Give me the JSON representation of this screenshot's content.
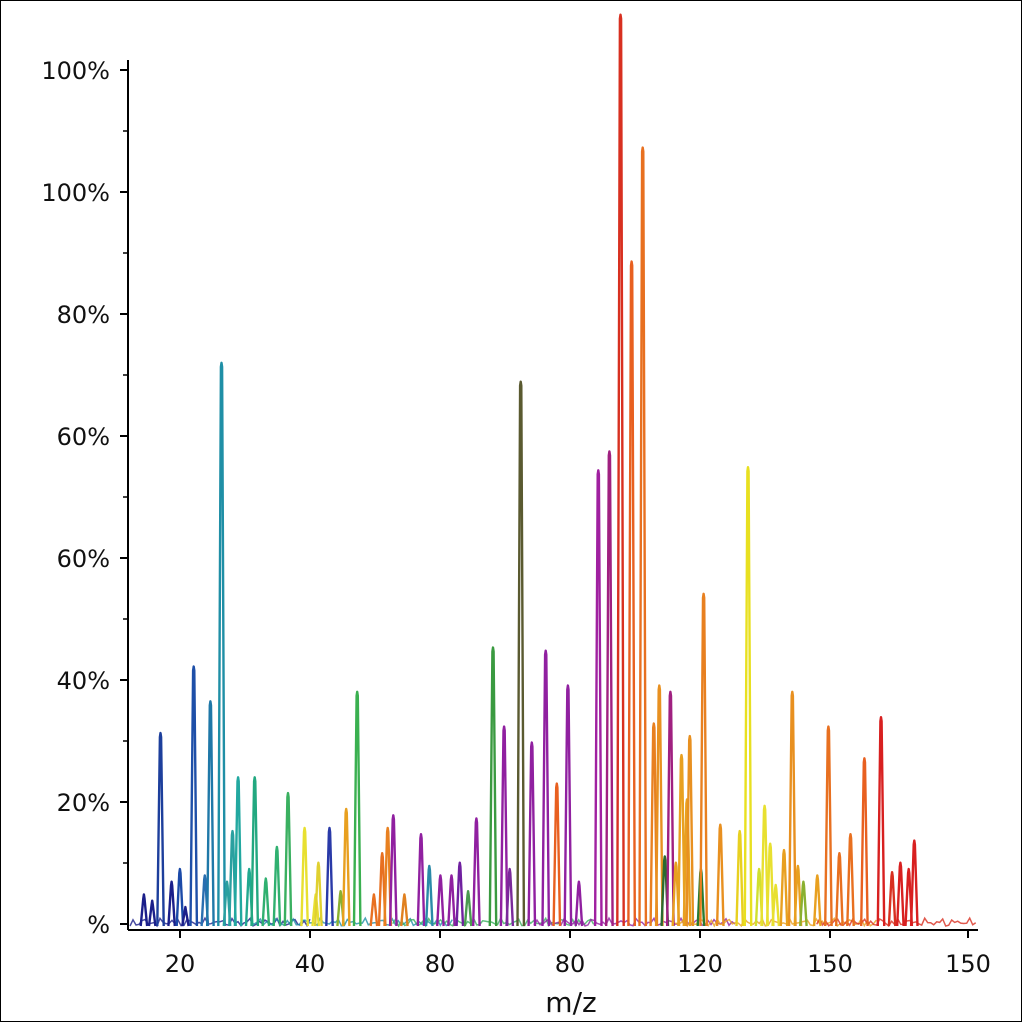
{
  "chart_data": {
    "type": "line",
    "xlabel": "m/z",
    "ylabel": "",
    "title": "",
    "x_ticks": [
      "20",
      "40",
      "80",
      "80",
      "120",
      "150",
      "150"
    ],
    "y_ticks": [
      "%",
      "20%",
      "40%",
      "60%",
      "60%",
      "80%",
      "100%",
      "100%"
    ],
    "xlim": [
      12,
      165
    ],
    "ylim": [
      0,
      140
    ],
    "grid": false,
    "legend": "none",
    "peaks": [
      {
        "x": 14.5,
        "y": 5,
        "color": "#1b1f8a"
      },
      {
        "x": 16,
        "y": 4,
        "color": "#1b1f8a"
      },
      {
        "x": 17.5,
        "y": 30.5,
        "color": "#1d3f9c"
      },
      {
        "x": 19.5,
        "y": 7,
        "color": "#1b1f8a"
      },
      {
        "x": 21,
        "y": 9,
        "color": "#1b4aa8"
      },
      {
        "x": 22,
        "y": 3,
        "color": "#1b1f8a"
      },
      {
        "x": 23.5,
        "y": 41,
        "color": "#1e4fa8"
      },
      {
        "x": 25.5,
        "y": 8,
        "color": "#2a6fb0"
      },
      {
        "x": 26.5,
        "y": 35.5,
        "color": "#1f78a8"
      },
      {
        "x": 28.5,
        "y": 89,
        "color": "#1f8fa6"
      },
      {
        "x": 29.5,
        "y": 7,
        "color": "#2aa0a0"
      },
      {
        "x": 30.5,
        "y": 15,
        "color": "#2aa0a0"
      },
      {
        "x": 31.5,
        "y": 23.5,
        "color": "#22a8a0"
      },
      {
        "x": 33.5,
        "y": 9,
        "color": "#22a890"
      },
      {
        "x": 34.5,
        "y": 23.5,
        "color": "#22a880"
      },
      {
        "x": 36.5,
        "y": 7.5,
        "color": "#30b070"
      },
      {
        "x": 38.5,
        "y": 12.5,
        "color": "#30b070"
      },
      {
        "x": 40.5,
        "y": 21,
        "color": "#3ab060"
      },
      {
        "x": 43.5,
        "y": 15.5,
        "color": "#e8e030"
      },
      {
        "x": 45.5,
        "y": 5,
        "color": "#e8e030"
      },
      {
        "x": 46,
        "y": 10,
        "color": "#e0d030"
      },
      {
        "x": 48,
        "y": 15.5,
        "color": "#2a3aa8"
      },
      {
        "x": 50,
        "y": 5.5,
        "color": "#8ab030"
      },
      {
        "x": 51,
        "y": 18.5,
        "color": "#e8a020"
      },
      {
        "x": 53,
        "y": 37,
        "color": "#3ab050"
      },
      {
        "x": 56,
        "y": 5,
        "color": "#e87020"
      },
      {
        "x": 57.5,
        "y": 11.5,
        "color": "#e87020"
      },
      {
        "x": 58.5,
        "y": 15.5,
        "color": "#e88020"
      },
      {
        "x": 59.5,
        "y": 17.5,
        "color": "#9020a0"
      },
      {
        "x": 61.5,
        "y": 5,
        "color": "#e08020"
      },
      {
        "x": 64.5,
        "y": 14.5,
        "color": "#9020a0"
      },
      {
        "x": 66,
        "y": 9.5,
        "color": "#2a8aa8"
      },
      {
        "x": 68,
        "y": 8,
        "color": "#9020a0"
      },
      {
        "x": 70,
        "y": 8,
        "color": "#9020a0"
      },
      {
        "x": 71.5,
        "y": 10,
        "color": "#7020a0"
      },
      {
        "x": 73,
        "y": 5.5,
        "color": "#4a9a50"
      },
      {
        "x": 74.5,
        "y": 17,
        "color": "#9020a0"
      },
      {
        "x": 77.5,
        "y": 44,
        "color": "#3a9a40"
      },
      {
        "x": 79.5,
        "y": 31.5,
        "color": "#9020a0"
      },
      {
        "x": 80.5,
        "y": 9,
        "color": "#7a2a9a"
      },
      {
        "x": 82.5,
        "y": 86,
        "color": "#5a5a30"
      },
      {
        "x": 84.5,
        "y": 29,
        "color": "#9020a0"
      },
      {
        "x": 87,
        "y": 43.5,
        "color": "#9020a0"
      },
      {
        "x": 89,
        "y": 22.5,
        "color": "#e86020"
      },
      {
        "x": 91,
        "y": 38,
        "color": "#9020a0"
      },
      {
        "x": 93,
        "y": 7,
        "color": "#9020a0"
      },
      {
        "x": 96.5,
        "y": 72,
        "color": "#a020a0"
      },
      {
        "x": 98.5,
        "y": 75,
        "color": "#a02080"
      },
      {
        "x": 100.5,
        "y": 144,
        "color": "#d83020"
      },
      {
        "x": 102.5,
        "y": 105,
        "color": "#e86020"
      },
      {
        "x": 104.5,
        "y": 123,
        "color": "#e87020"
      },
      {
        "x": 106.5,
        "y": 32,
        "color": "#e88020"
      },
      {
        "x": 107.5,
        "y": 38,
        "color": "#e89020"
      },
      {
        "x": 108.5,
        "y": 11,
        "color": "#2a6a30"
      },
      {
        "x": 109.5,
        "y": 37,
        "color": "#a02080"
      },
      {
        "x": 110.5,
        "y": 10,
        "color": "#e8a020"
      },
      {
        "x": 111.5,
        "y": 27,
        "color": "#e8a020"
      },
      {
        "x": 112.5,
        "y": 20,
        "color": "#e8a020"
      },
      {
        "x": 113,
        "y": 30,
        "color": "#e89020"
      },
      {
        "x": 115,
        "y": 9,
        "color": "#2a7a30"
      },
      {
        "x": 115.5,
        "y": 52.5,
        "color": "#e88020"
      },
      {
        "x": 118.5,
        "y": 16,
        "color": "#e89020"
      },
      {
        "x": 122,
        "y": 15,
        "color": "#e8d020"
      },
      {
        "x": 123.5,
        "y": 72.5,
        "color": "#e8e020"
      },
      {
        "x": 125.5,
        "y": 9,
        "color": "#d0e030"
      },
      {
        "x": 126.5,
        "y": 19,
        "color": "#e8e030"
      },
      {
        "x": 127.5,
        "y": 13,
        "color": "#e8e030"
      },
      {
        "x": 128.5,
        "y": 6.5,
        "color": "#e8e030"
      },
      {
        "x": 130,
        "y": 12,
        "color": "#e8a020"
      },
      {
        "x": 131.5,
        "y": 37,
        "color": "#e89020"
      },
      {
        "x": 132.5,
        "y": 9.5,
        "color": "#e8a020"
      },
      {
        "x": 133.5,
        "y": 7,
        "color": "#8ab030"
      },
      {
        "x": 136,
        "y": 8,
        "color": "#e8a020"
      },
      {
        "x": 138,
        "y": 31.5,
        "color": "#e87020"
      },
      {
        "x": 140,
        "y": 11.5,
        "color": "#e87020"
      },
      {
        "x": 142,
        "y": 14.5,
        "color": "#e87020"
      },
      {
        "x": 144.5,
        "y": 26.5,
        "color": "#e86020"
      },
      {
        "x": 147.5,
        "y": 33,
        "color": "#d82020"
      },
      {
        "x": 149.5,
        "y": 8.5,
        "color": "#d83020"
      },
      {
        "x": 151,
        "y": 10,
        "color": "#d82020"
      },
      {
        "x": 152.5,
        "y": 9,
        "color": "#d82020"
      },
      {
        "x": 153.5,
        "y": 13.5,
        "color": "#d82020"
      }
    ]
  }
}
